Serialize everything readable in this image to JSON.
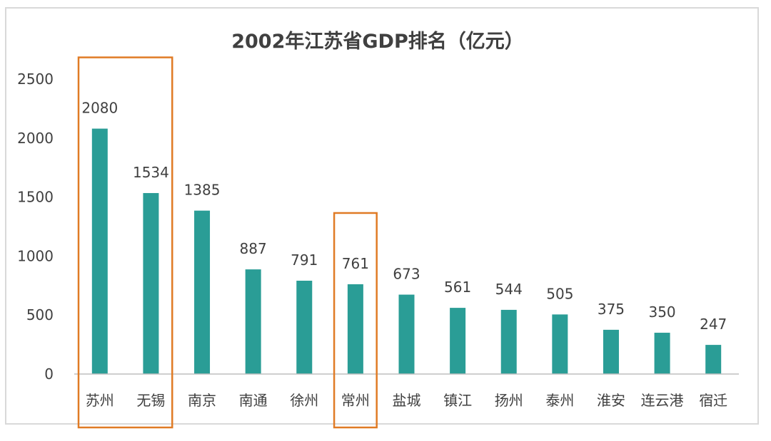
{
  "chart_data": {
    "type": "bar",
    "title": "2002年江苏省GDP排名（亿元）",
    "xlabel": "",
    "ylabel": "",
    "ylim": [
      0,
      2500
    ],
    "yticks": [
      0,
      500,
      1000,
      1500,
      2000,
      2500
    ],
    "grid": false,
    "legend": "none",
    "categories": [
      "苏州",
      "无锡",
      "南京",
      "南通",
      "徐州",
      "常州",
      "盐城",
      "镇江",
      "扬州",
      "泰州",
      "淮安",
      "连云港",
      "宿迁"
    ],
    "values": [
      2080,
      1534,
      1385,
      887,
      791,
      761,
      673,
      561,
      544,
      505,
      375,
      350,
      247
    ],
    "highlight_groups": [
      [
        "苏州",
        "无锡"
      ],
      [
        "常州"
      ]
    ]
  },
  "colors": {
    "bar": "#2a9d96",
    "highlight_box": "#e07b25",
    "axis": "#bfbfbf",
    "text": "#404040",
    "frame": "#d9d9d9"
  }
}
